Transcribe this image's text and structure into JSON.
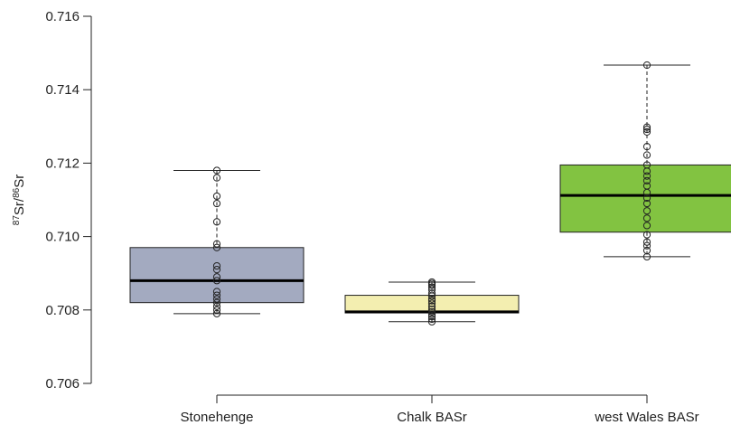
{
  "chart_data": {
    "type": "box",
    "ylabel_parts": {
      "iso1": "87",
      "sr1": "Sr/",
      "iso2": "86",
      "sr2": "Sr"
    },
    "ylim": [
      0.706,
      0.716
    ],
    "yticks": [
      "0.706",
      "0.708",
      "0.710",
      "0.712",
      "0.714",
      "0.716"
    ],
    "categories": [
      "Stonehenge",
      "Chalk BASr",
      "west Wales BASr"
    ],
    "boxes": [
      {
        "name": "Stonehenge",
        "color": "#a3aac0",
        "whisker_low": 0.7079,
        "q1": 0.7082,
        "median": 0.7088,
        "q3": 0.7097,
        "whisker_high": 0.7118,
        "points": [
          0.7118,
          0.7116,
          0.7111,
          0.7109,
          0.7104,
          0.7098,
          0.7097,
          0.7092,
          0.7091,
          0.7089,
          0.7088,
          0.7085,
          0.7084,
          0.7083,
          0.7082,
          0.7081,
          0.708,
          0.7079
        ]
      },
      {
        "name": "Chalk BASr",
        "color": "#f3eeb0",
        "whisker_low": 0.70768,
        "q1": 0.70792,
        "median": 0.70795,
        "q3": 0.7084,
        "whisker_high": 0.70876,
        "points": [
          0.70876,
          0.70872,
          0.70868,
          0.70862,
          0.70855,
          0.70845,
          0.70838,
          0.7083,
          0.70825,
          0.70818,
          0.7081,
          0.70802,
          0.70795,
          0.70788,
          0.70782,
          0.70775,
          0.70768
        ]
      },
      {
        "name": "west Wales BASr",
        "color": "#82c341",
        "whisker_low": 0.70945,
        "q1": 0.71012,
        "median": 0.71112,
        "q3": 0.71195,
        "whisker_high": 0.71467,
        "points": [
          0.71467,
          0.71298,
          0.71292,
          0.71285,
          0.71245,
          0.71222,
          0.71195,
          0.71178,
          0.71165,
          0.71152,
          0.71138,
          0.7112,
          0.71105,
          0.7109,
          0.7107,
          0.7105,
          0.7103,
          0.71005,
          0.70985,
          0.70975,
          0.70962,
          0.70945
        ]
      }
    ]
  }
}
